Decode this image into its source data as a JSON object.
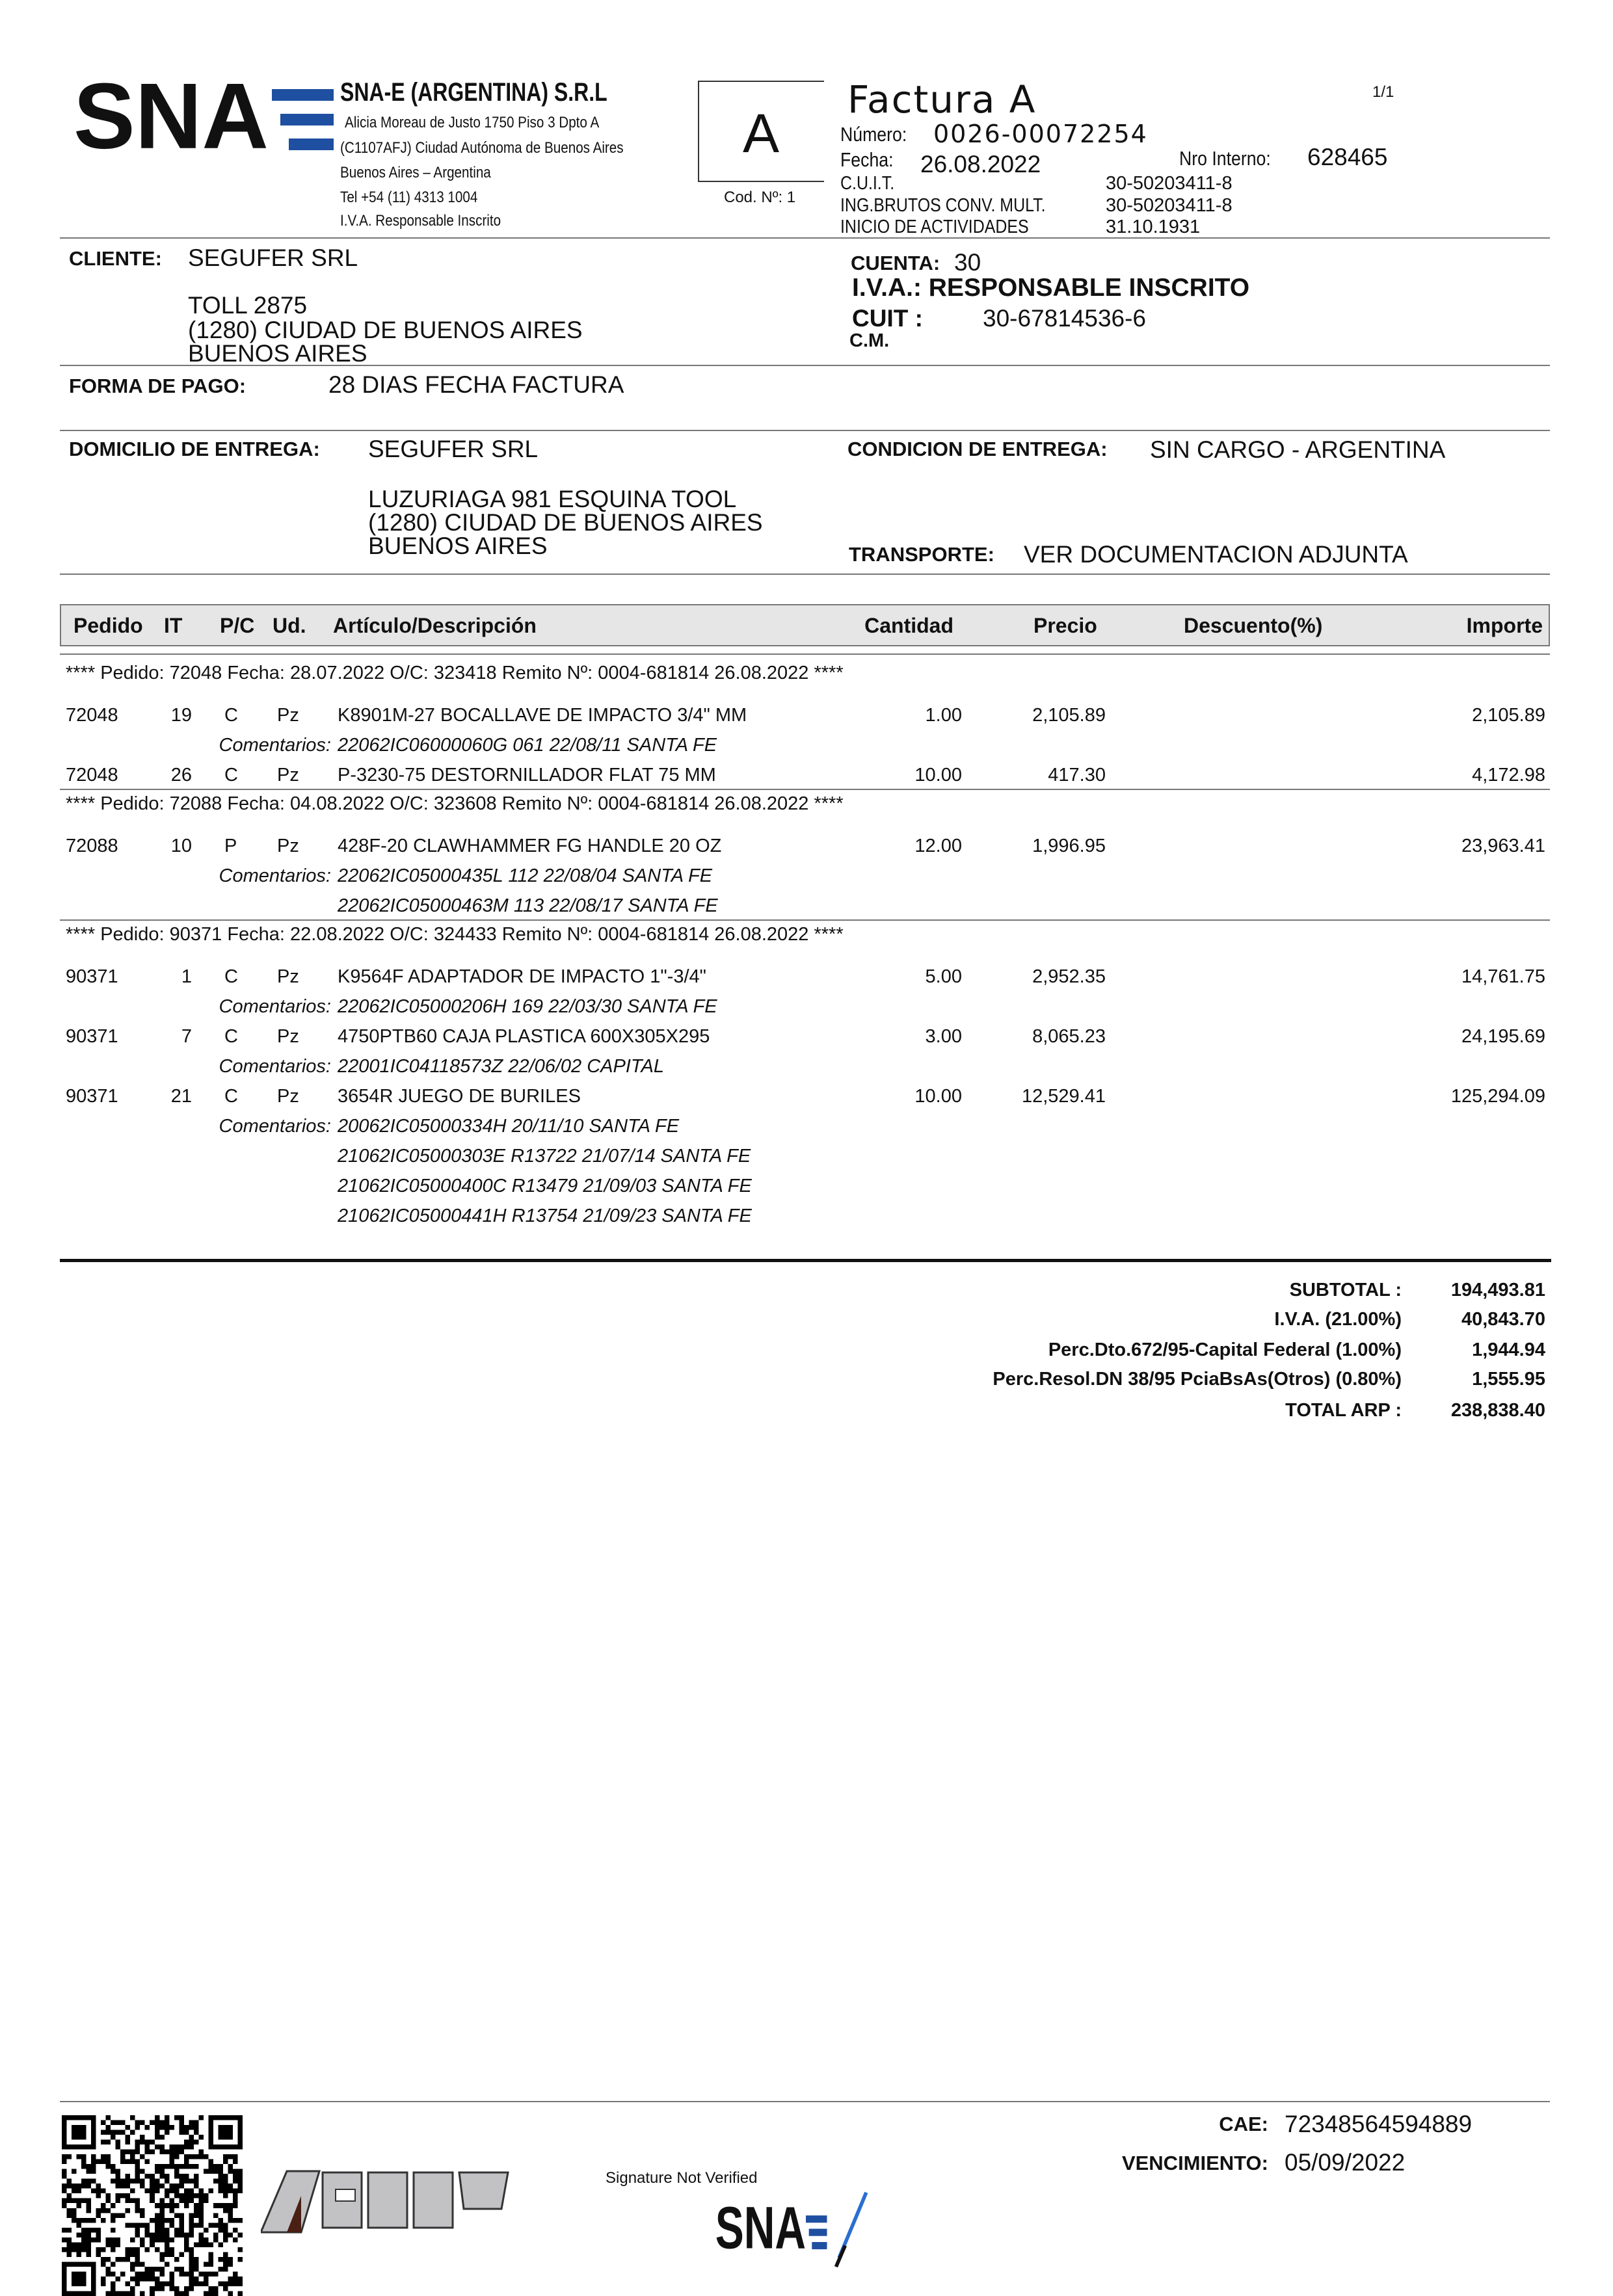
{
  "company": {
    "logo_text": "SNA",
    "name": "SNA-E (ARGENTINA) S.R.L",
    "address_lines": [
      "Alicia Moreau de Justo 1750 Piso 3 Dpto A",
      "(C1107AFJ) Ciudad Autónoma de Buenos Aires",
      "Buenos Aires – Argentina",
      "Tel  +54 (11)  4313 1004",
      "I.V.A. Responsable Inscrito"
    ],
    "brand_colors": {
      "black": "#111111",
      "blue": "#1f4fa0"
    }
  },
  "invoice_type": {
    "letter": "A",
    "code": "Cod. Nº: 1"
  },
  "invoice": {
    "title": "Factura A",
    "page": "1/1",
    "numero_label": "Número:",
    "numero": "0026-00072254",
    "fecha_label": "Fecha:",
    "fecha": "26.08.2022",
    "nro_interno_label": "Nro Interno:",
    "nro_interno": "628465",
    "cuit_label": "C.U.I.T.",
    "cuit": "30-50203411-8",
    "ingbrutos_label": "ING.BRUTOS CONV. MULT.",
    "ingbrutos": "30-50203411-8",
    "inicio_label": "INICIO DE ACTIVIDADES",
    "inicio": "31.10.1931"
  },
  "client": {
    "label": "CLIENTE:",
    "name": "SEGUFER SRL",
    "address": [
      "TOLL 2875",
      "(1280) CIUDAD DE BUENOS AIRES",
      "BUENOS AIRES"
    ],
    "cuenta_label": "CUENTA:",
    "cuenta": "30",
    "iva": "I.V.A.: RESPONSABLE INSCRITO",
    "cuit_label": "CUIT :",
    "cuit": "30-67814536-6",
    "cm_label": "C.M."
  },
  "payment": {
    "label": "FORMA DE PAGO:",
    "value": "28 DIAS FECHA FACTURA"
  },
  "delivery": {
    "label": "DOMICILIO DE ENTREGA:",
    "name": "SEGUFER SRL",
    "address": [
      "LUZURIAGA 981 ESQUINA TOOL",
      "(1280) CIUDAD DE BUENOS AIRES",
      "BUENOS AIRES"
    ],
    "condicion_label": "CONDICION DE ENTREGA:",
    "condicion": "SIN CARGO - ARGENTINA",
    "transporte_label": "TRANSPORTE:",
    "transporte": "VER DOCUMENTACION ADJUNTA"
  },
  "table": {
    "headers": {
      "pedido": "Pedido",
      "it": "IT",
      "pc": "P/C",
      "ud": "Ud.",
      "articulo": "Artículo/Descripción",
      "cantidad": "Cantidad",
      "precio": "Precio",
      "descuento": "Descuento(%)",
      "importe": "Importe"
    },
    "comment_label": "Comentarios:",
    "groups": [
      {
        "header": "****  Pedido: 72048    Fecha: 28.07.2022    O/C: 323418    Remito Nº: 0004-681814   26.08.2022 ****",
        "items": [
          {
            "pedido": "72048",
            "it": "19",
            "pc": "C",
            "ud": "Pz",
            "desc": "K8901M-27 BOCALLAVE DE IMPACTO 3/4\" MM",
            "cantidad": "1.00",
            "precio": "2,105.89",
            "importe": "2,105.89",
            "comments": [
              "22062IC06000060G 061 22/08/11 SANTA FE"
            ]
          },
          {
            "pedido": "72048",
            "it": "26",
            "pc": "C",
            "ud": "Pz",
            "desc": "P-3230-75 DESTORNILLADOR FLAT 75 MM",
            "cantidad": "10.00",
            "precio": "417.30",
            "importe": "4,172.98",
            "comments": []
          }
        ]
      },
      {
        "header": "****  Pedido: 72088    Fecha: 04.08.2022    O/C: 323608    Remito Nº: 0004-681814   26.08.2022 ****",
        "items": [
          {
            "pedido": "72088",
            "it": "10",
            "pc": "P",
            "ud": "Pz",
            "desc": "428F-20 CLAWHAMMER FG HANDLE 20 OZ",
            "cantidad": "12.00",
            "precio": "1,996.95",
            "importe": "23,963.41",
            "comments": [
              "22062IC05000435L 112 22/08/04 SANTA FE",
              "22062IC05000463M 113 22/08/17 SANTA FE"
            ]
          }
        ]
      },
      {
        "header": "****  Pedido: 90371    Fecha: 22.08.2022    O/C: 324433    Remito Nº: 0004-681814   26.08.2022 ****",
        "items": [
          {
            "pedido": "90371",
            "it": "1",
            "pc": "C",
            "ud": "Pz",
            "desc": "K9564F ADAPTADOR DE IMPACTO 1\"-3/4\"",
            "cantidad": "5.00",
            "precio": "2,952.35",
            "importe": "14,761.75",
            "comments": [
              "22062IC05000206H  169 22/03/30 SANTA FE"
            ]
          },
          {
            "pedido": "90371",
            "it": "7",
            "pc": "C",
            "ud": "Pz",
            "desc": "4750PTB60 CAJA PLASTICA 600X305X295",
            "cantidad": "3.00",
            "precio": "8,065.23",
            "importe": "24,195.69",
            "comments": [
              "22001IC04118573Z 22/06/02 CAPITAL"
            ]
          },
          {
            "pedido": "90371",
            "it": "21",
            "pc": "C",
            "ud": "Pz",
            "desc": "3654R JUEGO DE BURILES",
            "cantidad": "10.00",
            "precio": "12,529.41",
            "importe": "125,294.09",
            "comments": [
              "20062IC05000334H 20/11/10 SANTA FE",
              "21062IC05000303E R13722 21/07/14 SANTA FE",
              "21062IC05000400C R13479 21/09/03 SANTA FE",
              "21062IC05000441H R13754 21/09/23 SANTA FE"
            ]
          }
        ]
      }
    ]
  },
  "totals": [
    {
      "label": "SUBTOTAL :",
      "value": "194,493.81"
    },
    {
      "label": "I.V.A.  (21.00%)",
      "value": "40,843.70"
    },
    {
      "label": "Perc.Dto.672/95-Capital Federal  (1.00%)",
      "value": "1,944.94"
    },
    {
      "label": "Perc.Resol.DN 38/95 PciaBsAs(Otros)  (0.80%)",
      "value": "1,555.95"
    },
    {
      "label": "TOTAL ARP :",
      "value": "238,838.40"
    }
  ],
  "footer": {
    "afip_logo": "AFIP",
    "signature_text": "Signature Not Verified",
    "signature_logo": "SNA",
    "cae_label": "CAE:",
    "cae": "72348564594889",
    "venc_label": "VENCIMIENTO:",
    "venc": "05/09/2022"
  }
}
